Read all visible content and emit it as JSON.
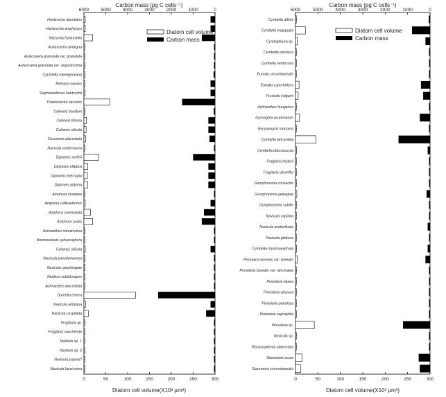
{
  "chart_data": [
    {
      "type": "bar",
      "orientation": "horizontal",
      "top_axis_label": "Carbon mass (pg C cells⁻¹)",
      "bottom_axis_label": "Diatom cell volume(X10³ µm³)",
      "top_ticks": [
        "6000",
        "5000",
        "4000",
        "3000",
        "2000",
        "1000",
        "0"
      ],
      "bottom_ticks": [
        "0",
        "50",
        "100",
        "150",
        "200",
        "250",
        "300"
      ],
      "xlim_volume": [
        0,
        300
      ],
      "xlim_carbon": [
        6000,
        0
      ],
      "legend": [
        "Diatom cell volume",
        "Carbon mass"
      ],
      "legend_position": "top-right",
      "categories": [
        "Hantzschia abundans",
        "Hantzschia amphioxys",
        "Nitzschia frybloniella",
        "Aulacoseira ambigua",
        "Aulacoseira granulata var. granulata",
        "Aulacoseira granulata var. angustissima",
        "Cyclotella meneghiniana",
        "Melosira varians",
        "Stephanodiscus hantzschii",
        "Thalassiosira lacustris",
        "Caloneis bacillum",
        "Caloneis limosa",
        "Caloneis silicula",
        "Cocconeis placentula",
        "Navicula confervacea",
        "Diploneis smithii",
        "Diploneis elliptica",
        "Diploneis interrupta",
        "Diploneis didyma",
        "Amphora montana",
        "Amphora coffeaeformis",
        "Amphora commutata",
        "Amphora ovalis",
        "Achnanthes minutissima",
        "Anomoeoneis sphaerophora",
        "Caloneis silicula",
        "Navicula pseudomurrayi",
        "Navicula spaulsingiae",
        "Neidium subbilongum",
        "Achnanthes lanceolata",
        "Surirella tenera",
        "Navicula ambigua",
        "Navicula cuspidata",
        "Fragilaria sp.",
        "Fragilaria vaucheriae",
        "Neidium sp. 1",
        "Neidium sp. 2",
        "Navicula pupula?",
        "Navicula laevissima"
      ],
      "series": [
        {
          "name": "Diatom cell volume",
          "values": [
            3,
            3,
            20,
            1,
            1,
            1,
            2,
            2,
            2,
            59,
            1,
            6,
            5,
            4,
            1,
            34,
            9,
            8,
            9,
            1,
            3,
            15,
            20,
            1,
            1,
            3,
            1,
            1,
            1,
            1,
            118,
            4,
            10,
            1,
            1,
            1,
            1,
            1,
            1
          ]
        },
        {
          "name": "Carbon mass",
          "values": [
            200,
            200,
            600,
            30,
            30,
            30,
            60,
            200,
            200,
            1500,
            50,
            300,
            300,
            250,
            30,
            1000,
            300,
            300,
            300,
            30,
            200,
            500,
            600,
            30,
            30,
            200,
            30,
            30,
            30,
            30,
            2600,
            200,
            400,
            30,
            30,
            30,
            30,
            30,
            30
          ]
        }
      ]
    },
    {
      "type": "bar",
      "orientation": "horizontal",
      "top_axis_label": "Carbon mass (pg C cells⁻¹)",
      "bottom_axis_label": "Diatom cell volume(X10³ µm³)",
      "top_ticks": [
        "6000",
        "5000",
        "4000",
        "3000",
        "2000",
        "1000",
        "0"
      ],
      "bottom_ticks": [
        "0",
        "50",
        "100",
        "150",
        "200",
        "250",
        "300"
      ],
      "xlim_volume": [
        0,
        300
      ],
      "xlim_carbon": [
        6000,
        0
      ],
      "legend": [
        "Diatom cell volume",
        "Carbon mass"
      ],
      "legend_position": "top-right",
      "categories": [
        "Cymbella affinis",
        "Cymbella inaequalis",
        "Cymbopleura sp.",
        "Cymbella silesiaca",
        "Cymbella ventricosa",
        "Eunotia circumborealis",
        "Eunotia superbidens",
        "Frustulia vulgaris",
        "Achnanthes hungarica",
        "Gyrosigma acuminatum",
        "Encyonopsis montana",
        "Cymbella lanceolata",
        "Cymbella obtusiuscula",
        "Fragilaria hederii",
        "Fragilaria istvanffyi",
        "Gomphonema consector",
        "Gomphonema jadwigiae",
        "Gomphonema subtile",
        "Navicula capitata",
        "Navicula acidoclinata",
        "Navicula gibbosa",
        "Cymbella rhynchocephala",
        "Pinnularia borealis var. borealis",
        "Pinnularia borealis var. lanceolata",
        "Pinnularia lataea",
        "Pinnularia obscura",
        "Pinnularia paludosa",
        "Pinnularia saprophila",
        "Pinnularia sp.",
        "Navicula sp.",
        "Rhoicosphenia abbreviata",
        "Stauroneis acuta",
        "Stauroneis circumborealis"
      ],
      "series": [
        {
          "name": "Diatom cell volume",
          "values": [
            1,
            22,
            4,
            1,
            1,
            1,
            8,
            6,
            1,
            9,
            1,
            46,
            2,
            1,
            1,
            1,
            3,
            1,
            1,
            2,
            1,
            2,
            4,
            1,
            1,
            1,
            1,
            1,
            42,
            1,
            1,
            15,
            12
          ]
        },
        {
          "name": "Carbon mass",
          "values": [
            50,
            800,
            200,
            30,
            30,
            30,
            400,
            300,
            30,
            450,
            30,
            1400,
            100,
            30,
            30,
            30,
            150,
            30,
            30,
            100,
            30,
            100,
            200,
            30,
            30,
            30,
            30,
            30,
            1200,
            30,
            30,
            500,
            450
          ]
        }
      ]
    }
  ]
}
